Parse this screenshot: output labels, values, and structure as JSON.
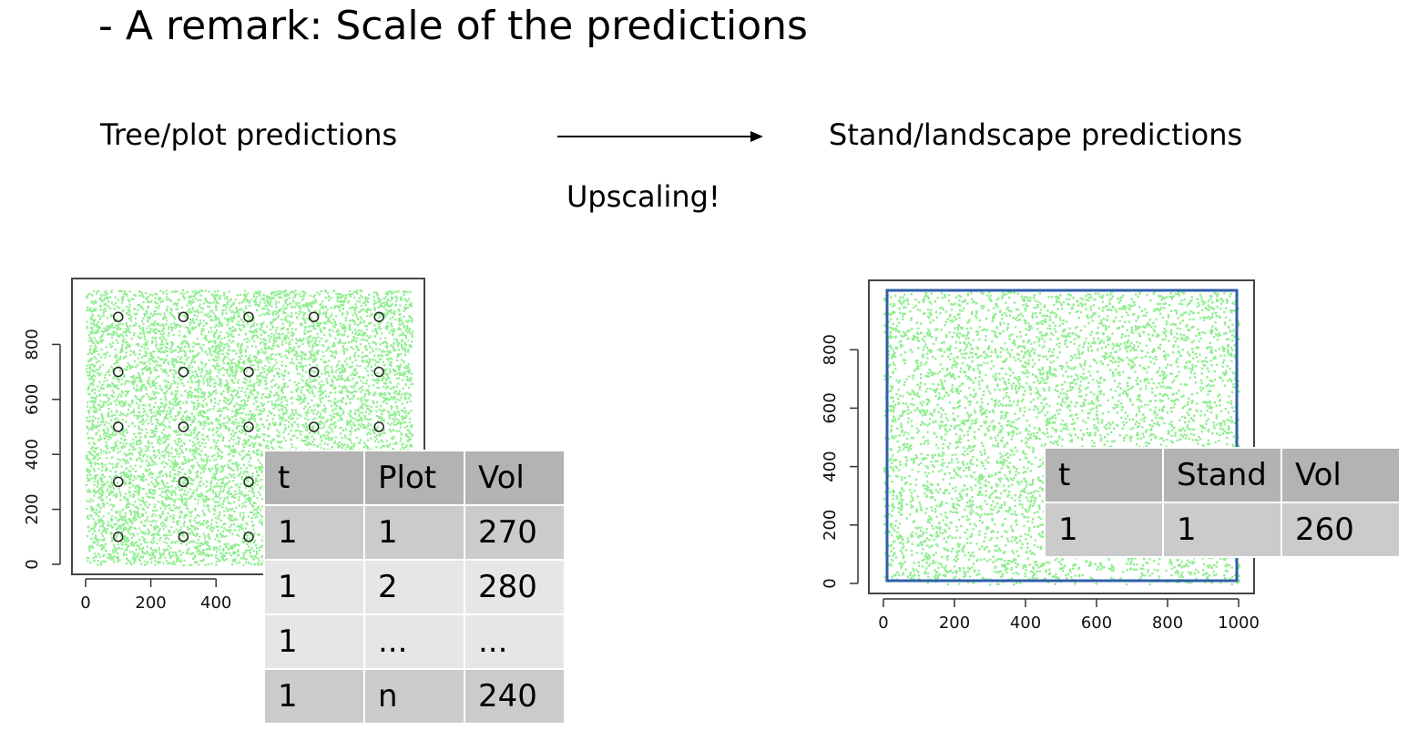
{
  "title": "- A remark: Scale of the predictions",
  "left_label": "Tree/plot predictions",
  "right_label": "Stand/landscape predictions",
  "upscaling_label": "Upscaling!",
  "colors": {
    "points": "#90ee90",
    "stand_border": "#2f5fa8",
    "header_cell": "#b3b3b3",
    "row_dark": "#cbcbcb",
    "row_light": "#e6e6e6"
  },
  "tree_plot_table": {
    "headers": [
      "t",
      "Plot",
      "Vol"
    ],
    "rows": [
      [
        "1",
        "1",
        "270"
      ],
      [
        "1",
        "2",
        "280"
      ],
      [
        "1",
        "...",
        "..."
      ],
      [
        "1",
        "n",
        "240"
      ]
    ]
  },
  "stand_table": {
    "headers": [
      "t",
      "Stand",
      "Vol"
    ],
    "rows": [
      [
        "1",
        "1",
        "260"
      ]
    ]
  },
  "chart_data": [
    {
      "type": "scatter",
      "description_series": [
        "trees",
        "sample plots"
      ],
      "x_ticks": [
        "0",
        "200",
        "400"
      ],
      "y_ticks": [
        "0",
        "200",
        "400",
        "600",
        "800"
      ],
      "xlim": [
        0,
        1000
      ],
      "ylim": [
        0,
        1000
      ],
      "plot_centers": {
        "x": [
          100,
          300,
          500,
          700,
          900
        ],
        "y": [
          100,
          300,
          500,
          700,
          900
        ]
      }
    },
    {
      "type": "scatter",
      "x_ticks": [
        "0",
        "200",
        "400",
        "600",
        "800",
        "1000"
      ],
      "y_ticks": [
        "0",
        "200",
        "400",
        "600",
        "800"
      ],
      "xlim": [
        0,
        1000
      ],
      "ylim": [
        0,
        1000
      ],
      "stand_boundary": [
        0,
        1000,
        0,
        1000
      ]
    }
  ]
}
